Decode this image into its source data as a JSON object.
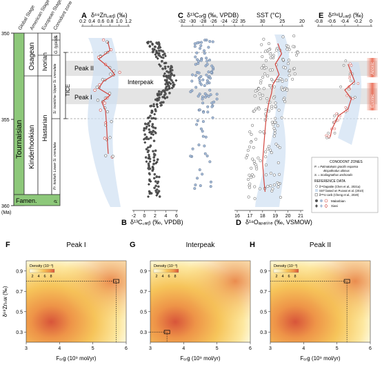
{
  "strat": {
    "headers": [
      "Global Stage",
      "American Stage",
      "European Stage",
      "Conodont zone"
    ],
    "global_main": "Tournaisian",
    "global_bottom": "Famen.",
    "american": "Kinderhookian",
    "osagean": "Osagean",
    "ivorian": "Ivorian",
    "hastarian": "Hastarian",
    "zone_s": "S.",
    "zone_g": "G. typicus",
    "zone_si": "Si. isosticha-\nUpper Si. crenulata",
    "zone_pr": "Pr. kockeli-\nLower Si. crenulata",
    "zone_p": "P.",
    "tice": "TICE",
    "age_ticks": [
      "350",
      "355",
      "360"
    ],
    "age_unit": "(Ma)"
  },
  "panel_labels": {
    "A": "A",
    "B": "B",
    "C": "C",
    "D": "D",
    "E": "E",
    "F": "F",
    "G": "G",
    "H": "H"
  },
  "annotations": {
    "peak2": "Peak II",
    "peak1": "Peak I",
    "interpeak": "Interpeak",
    "anoxic": "Anoxic",
    "euxinic": "Euxinic"
  },
  "axes": {
    "A_title": "δ⁶⁸Zn꜀ₐᵣᵦ (‰)",
    "A_ticks": [
      "0.2",
      "0.4",
      "0.6",
      "0.8",
      "1.0",
      "1.2"
    ],
    "B_title": "δ¹³C꜀ₐᵣᵦ (‰, VPDB)",
    "B_ticks": [
      "-2",
      "0",
      "2",
      "4",
      "6"
    ],
    "C_title": "δ¹³Cₒᵣg (‰, VPDB)",
    "C_ticks": [
      "-32",
      "-30",
      "-28",
      "-26",
      "-24",
      "-22"
    ],
    "SST_title": "SST (°C)",
    "SST_ticks": [
      "35",
      "30",
      "25",
      "20"
    ],
    "D_title": "δ¹⁸Oₐₚₐₜᵢₜₑ (‰, VSMOW)",
    "D_ticks": [
      "16",
      "17",
      "18",
      "19",
      "20",
      "21"
    ],
    "E_title": "δ²³⁸U꜀ₐᵣᵦ (‰)",
    "E_ticks": [
      "-0.8",
      "-0.6",
      "-0.4",
      "-0.2",
      "0"
    ]
  },
  "legend": {
    "conodont_title": "CONODONT ZONES",
    "conodont_lines": [
      "P. = Palmatolepis gracilis expansa",
      "-Bispathodus ultimus",
      "S. = Scaliognathus anchoralis"
    ],
    "ref_title": "REFERENCE DATA",
    "ref_lines": [
      "δ¹⁸Oapatite (Chen et al., 2021a)",
      "SST based on Puceat et al. (2010)",
      "δ²³⁸U carb (Cheng et al., 2020)"
    ],
    "sites": [
      "Malanbian",
      "Xiasi"
    ]
  },
  "density": {
    "titles": [
      "Peak I",
      "Interpeak",
      "Peak II"
    ],
    "ylabel": "δ⁶⁸Znₛw (‰)",
    "xlabel": "Fₒᵣg (10⁹ mol/yr)",
    "y_ticks": [
      "0.9",
      "0.7",
      "0.5",
      "0.3"
    ],
    "x_ticks": [
      "3",
      "4",
      "5",
      "6"
    ],
    "legend_title": "Density (10⁻³)",
    "legend_ticks": [
      "2",
      "4",
      "6",
      "8"
    ],
    "colors": [
      "#fffbe6",
      "#fde8a0",
      "#f6c45a",
      "#ee9448",
      "#d8553a"
    ]
  },
  "chart_data": [
    {
      "type": "scatter",
      "title": "A",
      "xlabel": "δ⁶⁸Zn carb (‰)",
      "ylabel": "Age (Ma)",
      "xlim": [
        0.2,
        1.2
      ],
      "ylim": [
        350,
        360
      ],
      "trend": [
        [
          0.75,
          350.5
        ],
        [
          0.8,
          351.0
        ],
        [
          0.55,
          351.5
        ],
        [
          0.78,
          352.0
        ],
        [
          0.9,
          352.4
        ],
        [
          0.65,
          352.8
        ],
        [
          0.55,
          353.2
        ],
        [
          0.8,
          353.6
        ],
        [
          0.62,
          354.0
        ],
        [
          0.7,
          354.5
        ],
        [
          0.72,
          355.2
        ],
        [
          0.74,
          356.2
        ],
        [
          0.76,
          357.0
        ]
      ]
    },
    {
      "type": "scatter",
      "title": "B",
      "xlabel": "δ¹³C carb (‰, VPDB)",
      "ylabel": "Age (Ma)",
      "xlim": [
        -2,
        6
      ],
      "ylim": [
        350,
        360
      ],
      "series": [
        {
          "name": "δ13Ccarb",
          "values": [
            [
              1.5,
              350.5
            ],
            [
              2.5,
              351.0
            ],
            [
              3.5,
              351.6
            ],
            [
              4.5,
              352.3
            ],
            [
              5.0,
              352.8
            ],
            [
              4.0,
              353.3
            ],
            [
              3.0,
              353.8
            ],
            [
              1.5,
              354.5
            ],
            [
              1.0,
              355.5
            ],
            [
              1.0,
              356.5
            ],
            [
              1.5,
              357.5
            ],
            [
              1.8,
              358.5
            ]
          ]
        }
      ]
    },
    {
      "type": "scatter",
      "title": "C",
      "xlabel": "δ¹³C org (‰, VPDB)",
      "ylabel": "Age (Ma)",
      "xlim": [
        -32,
        -22
      ],
      "ylim": [
        350,
        360
      ]
    },
    {
      "type": "line",
      "title": "D",
      "xlabel": "δ¹⁸O apatite (‰, VSMOW)",
      "ylabel": "Age (Ma)",
      "xlim": [
        16,
        21
      ],
      "ylim": [
        350,
        360
      ],
      "trend": [
        [
          19.2,
          350.6
        ],
        [
          19.5,
          351.2
        ],
        [
          19.0,
          351.8
        ],
        [
          19.3,
          352.4
        ],
        [
          18.8,
          353.0
        ],
        [
          18.7,
          353.5
        ],
        [
          18.5,
          354.0
        ],
        [
          18.3,
          354.8
        ],
        [
          18.2,
          355.6
        ],
        [
          18.1,
          356.5
        ],
        [
          18.0,
          357.5
        ],
        [
          18.1,
          358.5
        ],
        [
          18.2,
          359.2
        ]
      ]
    },
    {
      "type": "line",
      "title": "E",
      "xlabel": "δ²³⁸U carb (‰)",
      "ylabel": "Age (Ma)",
      "xlim": [
        -0.8,
        0
      ],
      "ylim": [
        350,
        360
      ],
      "trend": [
        [
          -0.35,
          351.8
        ],
        [
          -0.3,
          352.3
        ],
        [
          -0.25,
          352.8
        ],
        [
          -0.4,
          353.3
        ],
        [
          -0.3,
          353.8
        ],
        [
          -0.35,
          354.4
        ],
        [
          -0.5,
          354.8
        ],
        [
          -0.55,
          355.2
        ],
        [
          -0.6,
          355.6
        ],
        [
          -0.62,
          356.0
        ]
      ]
    },
    {
      "type": "heatmap",
      "title": "Peak I",
      "xlabel": "F org (10⁹ mol/yr)",
      "ylabel": "δ⁶⁸Zn sw (‰)",
      "xlim": [
        3,
        6
      ],
      "ylim": [
        0.2,
        1.0
      ],
      "marker": [
        5.7,
        0.8
      ]
    },
    {
      "type": "heatmap",
      "title": "Interpeak",
      "xlabel": "F org (10⁹ mol/yr)",
      "ylabel": "δ⁶⁸Zn sw (‰)",
      "xlim": [
        3,
        6
      ],
      "ylim": [
        0.2,
        1.0
      ],
      "marker": [
        3.5,
        0.3
      ]
    },
    {
      "type": "heatmap",
      "title": "Peak II",
      "xlabel": "F org (10⁹ mol/yr)",
      "ylabel": "δ⁶⁸Zn sw (‰)",
      "xlim": [
        3,
        6
      ],
      "ylim": [
        0.2,
        1.0
      ],
      "marker": [
        5.3,
        0.8
      ]
    }
  ]
}
